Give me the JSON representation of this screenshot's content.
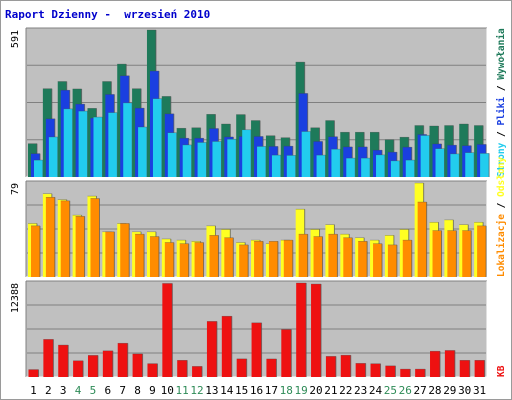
{
  "title": "Raport Dzienny -  wrzesień 2010",
  "colors": {
    "title": "#0000cc",
    "panel_bg": "#c0c0c0",
    "grid": "#808080",
    "wizyty": "#1e7a5a",
    "pliki": "#1a3fe0",
    "strony": "#22ccee",
    "odslony": "#ffff22",
    "lokalizacje": "#ff8c00",
    "kb": "#ee1111",
    "weekend_day": "#2e8b57",
    "weekday": "#000000",
    "separator": "#000000"
  },
  "chart_data": [
    {
      "type": "bar",
      "panel": "top",
      "ymax_label": "591",
      "legend": [
        {
          "label": "Wywołania",
          "color": "#1e7a5a"
        },
        {
          "label": "Pliki",
          "color": "#1a3fe0"
        },
        {
          "label": "Strony",
          "color": "#22ccee"
        }
      ],
      "legend_separator": "/",
      "ylim": [
        0,
        591
      ],
      "series": [
        {
          "name": "Wywołania",
          "values": [
            134,
            355,
            384,
            354,
            276,
            384,
            454,
            355,
            591,
            324,
            196,
            198,
            252,
            213,
            251,
            227,
            166,
            158,
            462,
            198,
            227,
            180,
            180,
            180,
            150,
            160,
            207,
            205,
            207,
            213,
            207
          ]
        },
        {
          "name": "Pliki",
          "values": [
            94,
            234,
            349,
            293,
            237,
            332,
            407,
            277,
            426,
            254,
            156,
            156,
            195,
            161,
            163,
            163,
            123,
            124,
            336,
            143,
            162,
            121,
            121,
            108,
            100,
            120,
            171,
            133,
            128,
            126,
            131
          ]
        },
        {
          "name": "Strony",
          "values": [
            68,
            161,
            274,
            265,
            241,
            259,
            298,
            201,
            315,
            178,
            129,
            139,
            143,
            152,
            190,
            123,
            88,
            87,
            183,
            88,
            112,
            76,
            76,
            89,
            65,
            68,
            167,
            114,
            93,
            98,
            95
          ]
        }
      ]
    },
    {
      "type": "bar",
      "panel": "middle",
      "ymax_label": "79",
      "legend": [
        {
          "label": "Odsłony",
          "color": "#ffff22"
        },
        {
          "label": "Lokalizacje",
          "color": "#ff8c00"
        }
      ],
      "legend_separator": "/",
      "ylim": [
        0,
        79
      ],
      "series": [
        {
          "name": "Odsłony",
          "values": [
            45,
            70,
            65,
            52,
            68,
            38,
            45,
            38,
            38,
            32,
            31,
            30,
            43,
            40,
            29,
            31,
            28,
            31,
            57,
            40,
            44,
            36,
            33,
            31,
            35,
            40,
            79,
            46,
            48,
            44,
            46
          ]
        },
        {
          "name": "Lokalizacje",
          "values": [
            43,
            67,
            64,
            51,
            66,
            38,
            45,
            36,
            34,
            29,
            28,
            29,
            35,
            33,
            27,
            30,
            30,
            31,
            36,
            34,
            36,
            33,
            30,
            28,
            27,
            31,
            63,
            39,
            39,
            39,
            43
          ]
        }
      ]
    },
    {
      "type": "bar",
      "panel": "bottom",
      "ymax_label": "12388",
      "legend": [
        {
          "label": "KB",
          "color": "#ee1111"
        }
      ],
      "ylim": [
        0,
        12388
      ],
      "series": [
        {
          "name": "KB",
          "values": [
            980,
            4960,
            4210,
            2140,
            2850,
            3450,
            4450,
            3040,
            1760,
            12330,
            2200,
            1400,
            7330,
            8010,
            2390,
            7140,
            2380,
            6260,
            12388,
            12250,
            2720,
            2870,
            1800,
            1750,
            1470,
            1040,
            1040,
            3400,
            3500,
            2200,
            2200
          ]
        }
      ]
    }
  ],
  "x_axis": {
    "categories": [
      "1",
      "2",
      "3",
      "4",
      "5",
      "6",
      "7",
      "8",
      "9",
      "10",
      "11",
      "12",
      "13",
      "14",
      "15",
      "16",
      "17",
      "18",
      "19",
      "20",
      "21",
      "22",
      "23",
      "24",
      "25",
      "26",
      "27",
      "28",
      "29",
      "30",
      "31"
    ],
    "weekend": [
      4,
      5,
      11,
      12,
      18,
      19,
      25,
      26
    ]
  }
}
